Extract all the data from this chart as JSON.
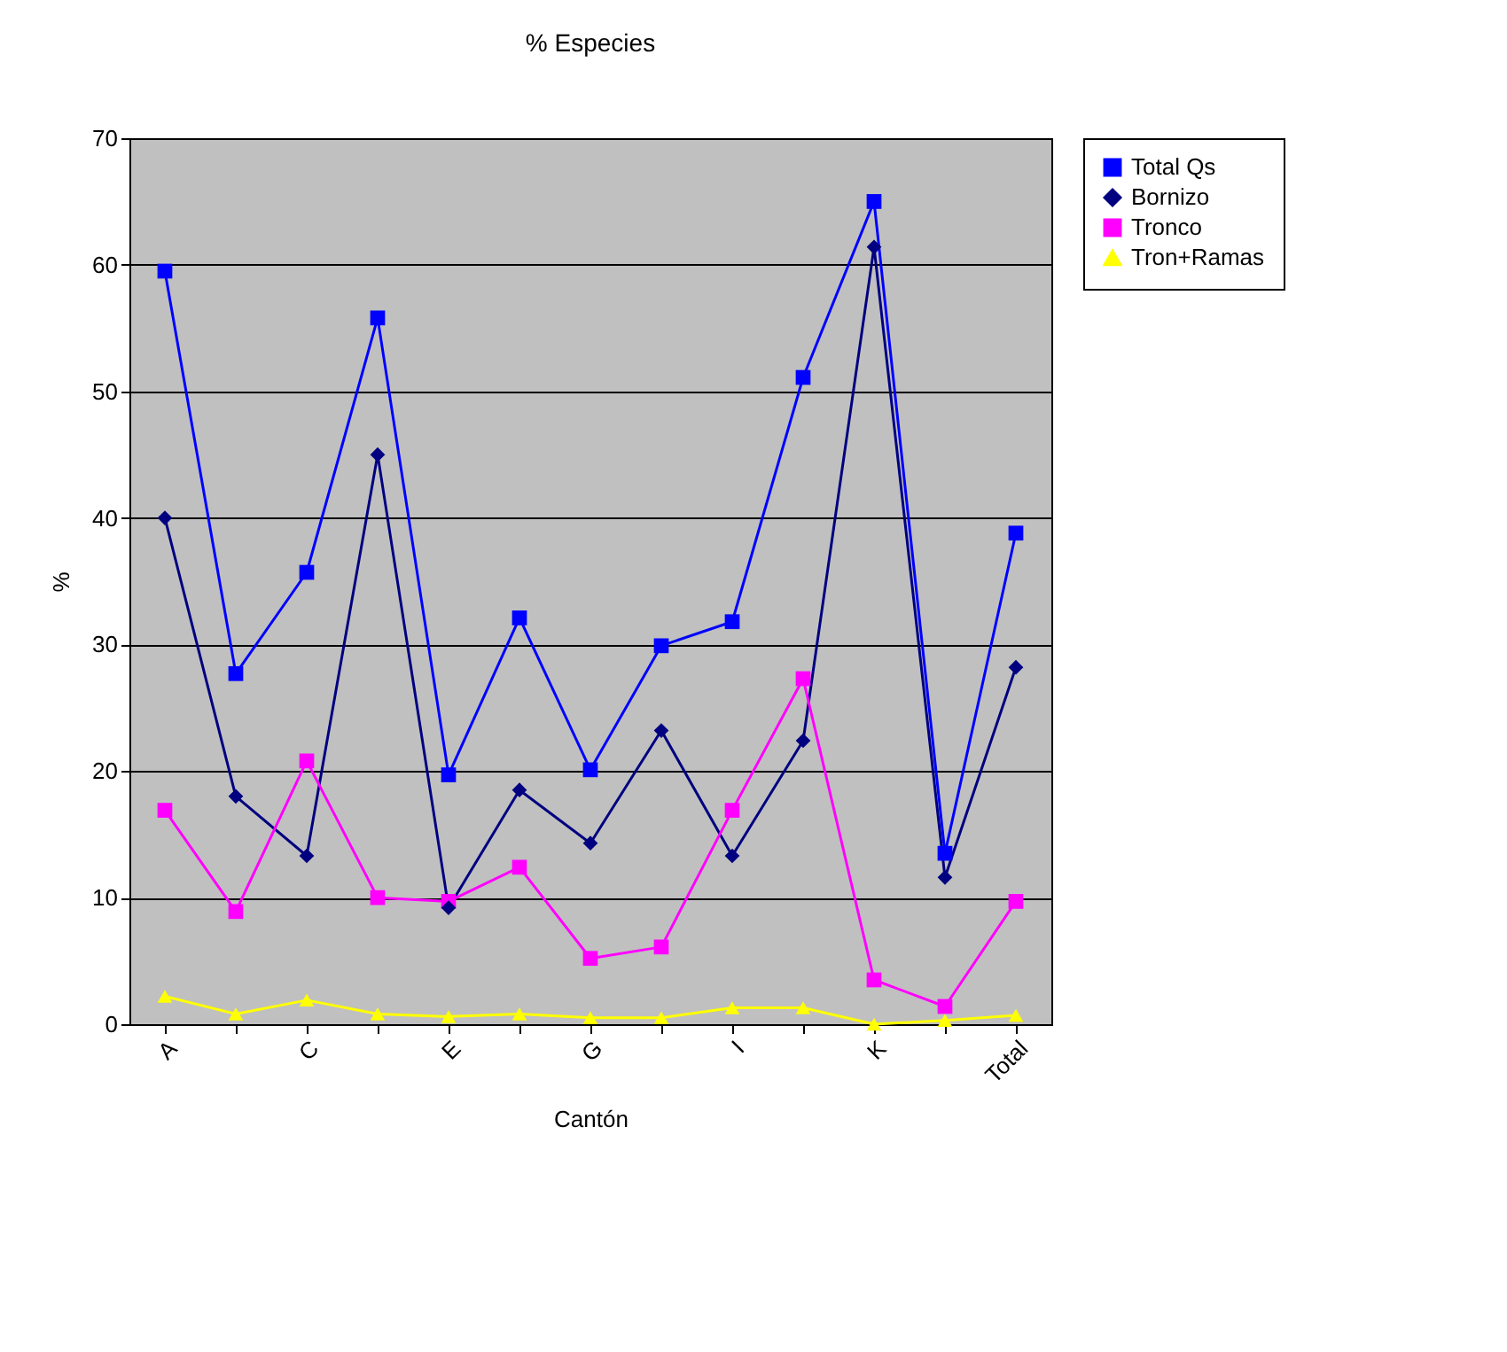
{
  "chart_data": {
    "type": "line",
    "title": "% Especies",
    "xlabel": "Cantón",
    "ylabel": "%",
    "categories": [
      "A",
      null,
      "C",
      null,
      "E",
      null,
      "G",
      null,
      "I",
      null,
      "K",
      null,
      "Total"
    ],
    "series": [
      {
        "name": "Total Qs",
        "color": "#0000ff",
        "marker": "square",
        "values": [
          59.5,
          27.7,
          35.7,
          55.8,
          19.7,
          32.1,
          20.1,
          29.9,
          31.8,
          51.1,
          65,
          13.5,
          38.8
        ]
      },
      {
        "name": "Bornizo",
        "color": "#000080",
        "marker": "diamond",
        "values": [
          40,
          18,
          13.3,
          45,
          9.2,
          18.5,
          14.3,
          23.2,
          13.3,
          22.4,
          61.4,
          11.6,
          28.2
        ]
      },
      {
        "name": "Tronco",
        "color": "#ff00ff",
        "marker": "square",
        "values": [
          16.9,
          8.9,
          20.8,
          10,
          9.7,
          12.4,
          5.2,
          6.1,
          16.9,
          27.3,
          3.5,
          1.4,
          9.7
        ]
      },
      {
        "name": "Tron+Ramas",
        "color": "#ffff00",
        "marker": "triangle",
        "values": [
          2.2,
          0.8,
          1.9,
          0.8,
          0.6,
          0.8,
          0.5,
          0.5,
          1.3,
          1.3,
          0,
          0.3,
          0.7
        ]
      }
    ],
    "ylim": [
      0,
      70
    ],
    "yticks": [
      0,
      10,
      20,
      30,
      40,
      50,
      60,
      70
    ],
    "grid": "y",
    "legend": "right"
  }
}
